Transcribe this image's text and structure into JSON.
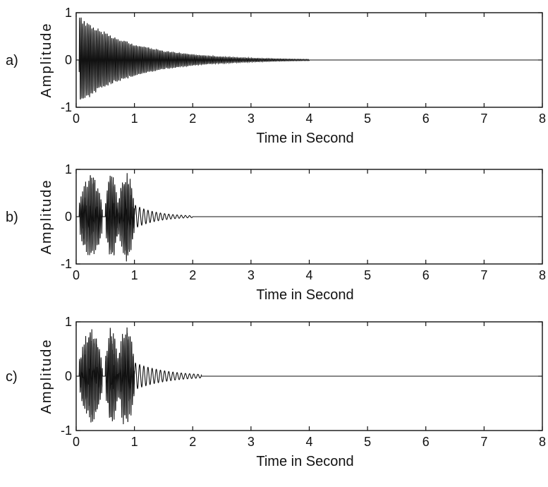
{
  "chart_data": [
    {
      "type": "line",
      "panel_label": "a)",
      "xlabel": "Time in Second",
      "ylabel": "Amplitude",
      "xlim": [
        0,
        8
      ],
      "ylim": [
        -1,
        1
      ],
      "xticks": [
        "0",
        "1",
        "2",
        "3",
        "4",
        "5",
        "6",
        "7",
        "8"
      ],
      "yticks": [
        "-1",
        "0",
        "1"
      ],
      "series": [
        {
          "description_kind": "decaying oscillation",
          "x_start": 0,
          "x_end": 8,
          "onset": 0.05,
          "peak_amplitude": 0.95,
          "decay_rate": 1.05,
          "oscillation_end": 4.0,
          "baseline": [
            {
              "x": 0,
              "y": 0
            },
            {
              "x": 8,
              "y": 0
            }
          ]
        }
      ]
    },
    {
      "type": "line",
      "panel_label": "b)",
      "xlabel": "Time in Second",
      "ylabel": "Amplitude",
      "xlim": [
        0,
        8
      ],
      "ylim": [
        -1,
        1
      ],
      "xticks": [
        "0",
        "1",
        "2",
        "3",
        "4",
        "5",
        "6",
        "7",
        "8"
      ],
      "yticks": [
        "-1",
        "0",
        "1"
      ],
      "series": [
        {
          "description_kind": "bursts then decay",
          "x_start": 0,
          "x_end": 8,
          "bursts": [
            {
              "start": 0.05,
              "end": 0.45,
              "amp": 0.9
            },
            {
              "start": 0.5,
              "end": 0.72,
              "amp": 0.95
            },
            {
              "start": 0.72,
              "end": 1.0,
              "amp": 1.0
            }
          ],
          "decay_after": 1.0,
          "decay_rate": 2.6,
          "oscillation_end": 2.0,
          "baseline": [
            {
              "x": 0,
              "y": 0
            },
            {
              "x": 8,
              "y": 0
            }
          ]
        }
      ]
    },
    {
      "type": "line",
      "panel_label": "c)",
      "xlabel": "Time in Second",
      "ylabel": "Amplitude",
      "xlim": [
        0,
        8
      ],
      "ylim": [
        -1,
        1
      ],
      "xticks": [
        "0",
        "1",
        "2",
        "3",
        "4",
        "5",
        "6",
        "7",
        "8"
      ],
      "yticks": [
        "-1",
        "0",
        "1"
      ],
      "series": [
        {
          "description_kind": "bursts then decay",
          "x_start": 0,
          "x_end": 8,
          "bursts": [
            {
              "start": 0.05,
              "end": 0.45,
              "amp": 0.9
            },
            {
              "start": 0.5,
              "end": 0.72,
              "amp": 0.95
            },
            {
              "start": 0.72,
              "end": 1.0,
              "amp": 1.0
            }
          ],
          "decay_after": 1.0,
          "decay_rate": 1.8,
          "oscillation_end": 2.15,
          "baseline": [
            {
              "x": 0,
              "y": 0
            },
            {
              "x": 8,
              "y": 0
            }
          ]
        }
      ]
    }
  ]
}
